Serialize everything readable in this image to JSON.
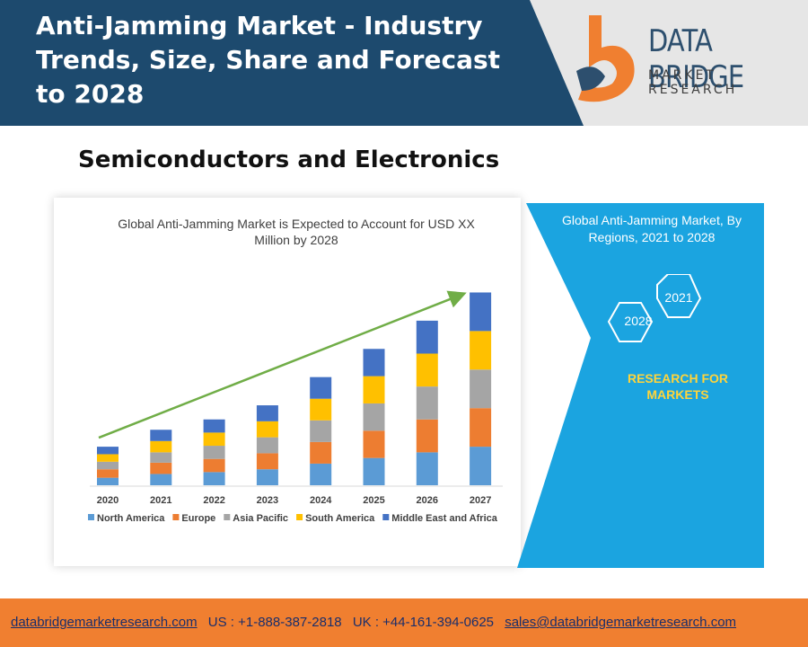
{
  "header": {
    "title": "Anti-Jamming Market - Industry Trends, Size, Share and Forecast to 2028"
  },
  "logo": {
    "name": "DATA BRIDGE",
    "subtitle": "MARKET RESEARCH",
    "colors": {
      "orange": "#f07f30",
      "navy": "#2d4f6e"
    }
  },
  "section_title": "Semiconductors and Electronics",
  "chart_data": {
    "type": "bar",
    "stacked": true,
    "title": "Global Anti-Jamming Market is Expected to Account for USD XX Million by 2028",
    "categories": [
      "2020",
      "2021",
      "2022",
      "2023",
      "2024",
      "2025",
      "2026",
      "2027"
    ],
    "series": [
      {
        "name": "North America",
        "color": "#5b9bd5",
        "values": [
          8,
          12,
          14,
          17,
          23,
          29,
          35,
          41
        ]
      },
      {
        "name": "Europe",
        "color": "#ed7d31",
        "values": [
          9,
          12,
          14,
          17,
          23,
          29,
          35,
          41
        ]
      },
      {
        "name": "Asia Pacific",
        "color": "#a5a5a5",
        "values": [
          8,
          11,
          14,
          17,
          23,
          29,
          35,
          41
        ]
      },
      {
        "name": "South America",
        "color": "#ffc000",
        "values": [
          8,
          12,
          14,
          17,
          23,
          29,
          35,
          41
        ]
      },
      {
        "name": "Middle East and Africa",
        "color": "#4472c4",
        "values": [
          8,
          12,
          14,
          17,
          23,
          29,
          35,
          41
        ]
      }
    ],
    "trend_arrow_color": "#70ad47",
    "ylim": [
      0,
      215
    ],
    "grid": false,
    "legend_position": "bottom"
  },
  "panel": {
    "title": "Global Anti-Jamming Market, By Regions, 2021 to 2028",
    "hex_labels": [
      "2021",
      "2028"
    ],
    "research": "RESEARCH FOR MARKETS",
    "color": "#1ba4e0"
  },
  "footer": {
    "website": "databridgemarketresearch.com",
    "us_phone": "US : +1-888-387-2818",
    "uk_phone": "UK : +44-161-394-0625",
    "email": "sales@databridgemarketresearch.com"
  }
}
